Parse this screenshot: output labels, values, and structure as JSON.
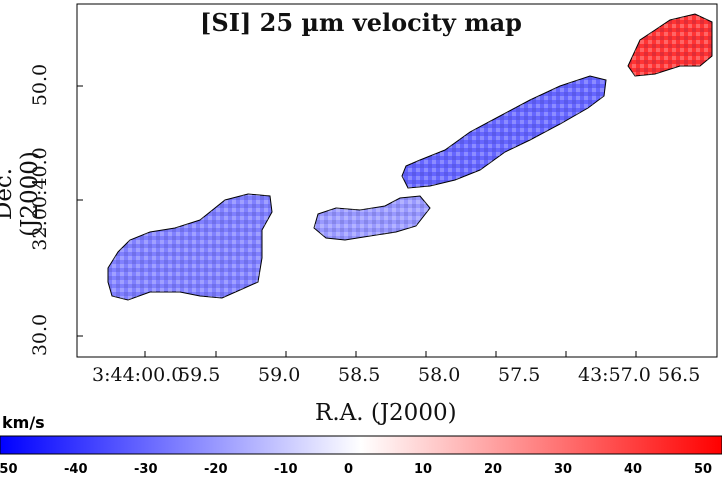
{
  "chart_data": {
    "type": "heatmap",
    "title": "[SI] 25 µm velocity map",
    "xlabel": "R.A. (J2000)",
    "ylabel": "Dec. (J2000)",
    "xticks": [
      "3:44:00.0",
      "59.5",
      "59.0",
      "58.5",
      "58.0",
      "57.5",
      "43:57.0",
      "56.5"
    ],
    "yticks": [
      "30.0",
      "32:00:40.0",
      "50.0"
    ],
    "colorbar": {
      "label": "km/s",
      "ticks": [
        "-50",
        "-40",
        "-30",
        "-20",
        "-10",
        "0",
        "10",
        "20",
        "30",
        "40",
        "50"
      ],
      "range": [
        -50,
        50
      ],
      "colors": [
        "#0000ff",
        "#ffffff",
        "#ff0000"
      ]
    },
    "regions": [
      {
        "velocity": -25
      },
      {
        "velocity": -20
      },
      {
        "velocity": -30
      },
      {
        "velocity": 40
      }
    ]
  }
}
